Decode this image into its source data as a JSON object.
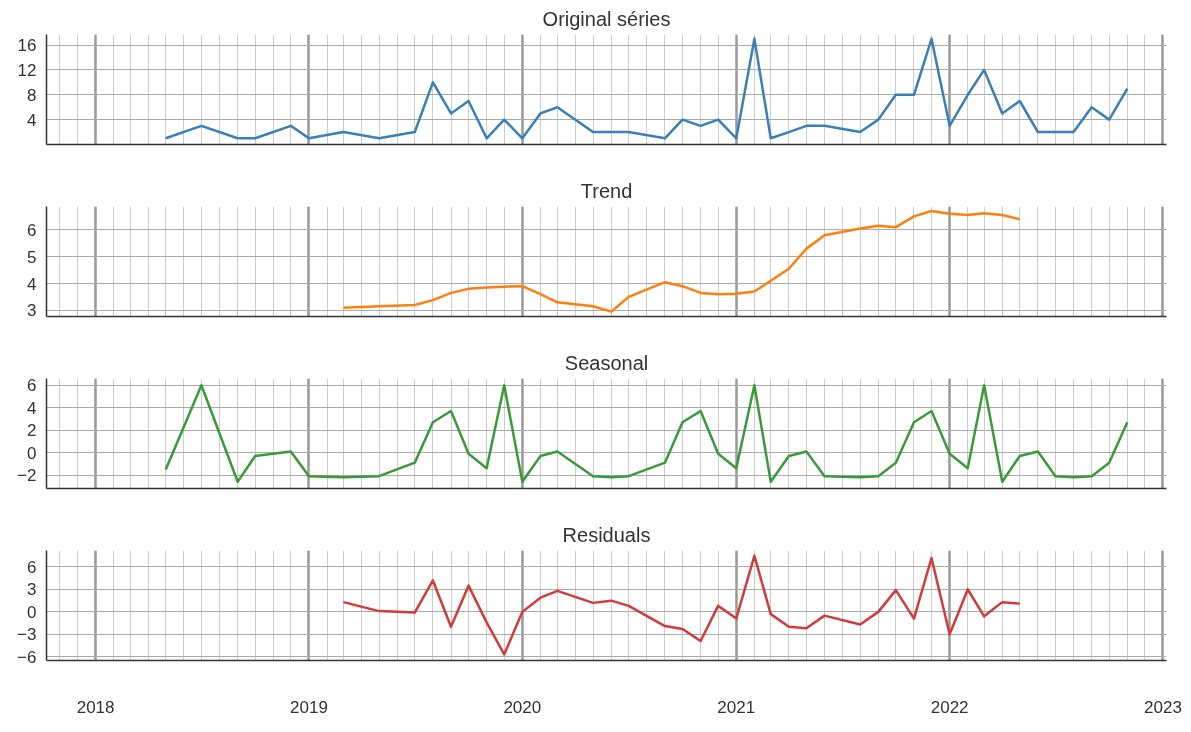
{
  "chart_data": [
    {
      "type": "line",
      "title": "Original séries",
      "tick_labels": "y",
      "grid": true,
      "xlim": [
        "2017-10-09",
        "2023-01-07"
      ],
      "xticks": [
        {
          "value": "2018",
          "label": null
        },
        {
          "value": "2019",
          "label": null
        },
        {
          "value": "2020",
          "label": null
        },
        {
          "value": "2021",
          "label": null
        },
        {
          "value": "2022",
          "label": null
        },
        {
          "value": "2023",
          "label": null
        }
      ],
      "ylim": [
        0,
        17.7
      ],
      "yticks": [
        4,
        8,
        12,
        16
      ],
      "x": [
        "2018-05",
        "2018-07",
        "2018-09",
        "2018-10",
        "2018-12",
        "2019-01",
        "2019-03",
        "2019-05",
        "2019-07",
        "2019-08",
        "2019-09",
        "2019-10",
        "2019-11",
        "2019-12",
        "2020-01",
        "2020-02",
        "2020-03",
        "2020-05",
        "2020-06",
        "2020-07",
        "2020-09",
        "2020-10",
        "2020-11",
        "2020-12",
        "2021-01",
        "2021-02",
        "2021-03",
        "2021-04",
        "2021-05",
        "2021-06",
        "2021-08",
        "2021-09",
        "2021-10",
        "2021-11",
        "2021-12",
        "2022-01",
        "2022-02",
        "2022-03",
        "2022-04",
        "2022-05",
        "2022-06",
        "2022-07",
        "2022-08",
        "2022-09",
        "2022-10",
        "2022-11"
      ],
      "series": [
        {
          "color": "#3a7fb5",
          "values": [
            1,
            3,
            1,
            1,
            3,
            1,
            2,
            1,
            2,
            10,
            5,
            7,
            1,
            4,
            1,
            5,
            6,
            2,
            2,
            2,
            1,
            4,
            3,
            4,
            1,
            17,
            1,
            2,
            3,
            3,
            2,
            4,
            8,
            8,
            17,
            3,
            8,
            12,
            5,
            7,
            2,
            2,
            2,
            6,
            4,
            9
          ]
        }
      ]
    },
    {
      "type": "line",
      "title": "Trend",
      "tick_labels": "y",
      "grid": true,
      "xlim": [
        "2017-10-09",
        "2023-01-07"
      ],
      "xticks": [
        {
          "value": "2018",
          "label": null
        },
        {
          "value": "2019",
          "label": null
        },
        {
          "value": "2020",
          "label": null
        },
        {
          "value": "2021",
          "label": null
        },
        {
          "value": "2022",
          "label": null
        },
        {
          "value": "2023",
          "label": null
        }
      ],
      "ylim": [
        2.77,
        6.87
      ],
      "yticks": [
        3,
        4,
        5,
        6
      ],
      "x": [
        "2019-03",
        "2019-05",
        "2019-07",
        "2019-08",
        "2019-09",
        "2019-10",
        "2019-11",
        "2019-12",
        "2020-01",
        "2020-02",
        "2020-03",
        "2020-05",
        "2020-06",
        "2020-07",
        "2020-09",
        "2020-10",
        "2020-11",
        "2020-12",
        "2021-01",
        "2021-02",
        "2021-03",
        "2021-04",
        "2021-05",
        "2021-06",
        "2021-08",
        "2021-09",
        "2021-10",
        "2021-11",
        "2021-12",
        "2022-01",
        "2022-02",
        "2022-03",
        "2022-04",
        "2022-05"
      ],
      "series": [
        {
          "color": "#ff7f0e",
          "values": [
            3.1,
            3.15,
            3.2,
            3.38,
            3.65,
            3.8,
            3.85,
            3.88,
            3.9,
            3.6,
            3.3,
            3.15,
            2.95,
            3.5,
            4.05,
            3.9,
            3.65,
            3.6,
            3.62,
            3.7,
            4.1,
            4.55,
            5.3,
            5.8,
            6.05,
            6.15,
            6.1,
            6.5,
            6.7,
            6.6,
            6.55,
            6.62,
            6.55,
            6.4
          ]
        }
      ]
    },
    {
      "type": "line",
      "title": "Seasonal",
      "tick_labels": "y",
      "grid": true,
      "xlim": [
        "2017-10-09",
        "2023-01-07"
      ],
      "xticks": [
        {
          "value": "2018",
          "label": null
        },
        {
          "value": "2019",
          "label": null
        },
        {
          "value": "2020",
          "label": null
        },
        {
          "value": "2021",
          "label": null
        },
        {
          "value": "2022",
          "label": null
        },
        {
          "value": "2023",
          "label": null
        }
      ],
      "ylim": [
        -3.2,
        6.6
      ],
      "yticks": [
        {
          "value": -2,
          "label": "−2"
        },
        0,
        2,
        4,
        6
      ],
      "x": [
        "2018-05",
        "2018-07",
        "2018-09",
        "2018-10",
        "2018-12",
        "2019-01",
        "2019-03",
        "2019-05",
        "2019-07",
        "2019-08",
        "2019-09",
        "2019-10",
        "2019-11",
        "2019-12",
        "2020-01",
        "2020-02",
        "2020-03",
        "2020-05",
        "2020-06",
        "2020-07",
        "2020-09",
        "2020-10",
        "2020-11",
        "2020-12",
        "2021-01",
        "2021-02",
        "2021-03",
        "2021-04",
        "2021-05",
        "2021-06",
        "2021-08",
        "2021-09",
        "2021-10",
        "2021-11",
        "2021-12",
        "2022-01",
        "2022-02",
        "2022-03",
        "2022-04",
        "2022-05",
        "2022-06",
        "2022-07",
        "2022-08",
        "2022-09",
        "2022-10",
        "2022-11"
      ],
      "series": [
        {
          "color": "#3a9a3a",
          "values": [
            -1.5,
            6,
            -2.6,
            -0.3,
            0.1,
            -2.1,
            -2.2,
            -2.1,
            -0.9,
            2.7,
            3.7,
            -0.1,
            -1.4,
            6,
            -2.6,
            -0.3,
            0.1,
            -2.1,
            -2.2,
            -2.1,
            -0.9,
            2.7,
            3.7,
            -0.1,
            -1.4,
            6,
            -2.6,
            -0.3,
            0.1,
            -2.1,
            -2.2,
            -2.1,
            -0.9,
            2.7,
            3.7,
            -0.1,
            -1.4,
            6,
            -2.6,
            -0.3,
            0.1,
            -2.1,
            -2.2,
            -2.1,
            -0.9,
            2.7
          ]
        }
      ]
    },
    {
      "type": "line",
      "title": "Residuals",
      "grid": true,
      "xlim": [
        "2017-10-09",
        "2023-01-07"
      ],
      "xticks": [
        {
          "value": "2018",
          "label": "2018"
        },
        {
          "value": "2019",
          "label": "2019"
        },
        {
          "value": "2020",
          "label": "2020"
        },
        {
          "value": "2021",
          "label": "2021"
        },
        {
          "value": "2022",
          "label": "2022"
        },
        {
          "value": "2023",
          "label": "2023"
        }
      ],
      "ylim": [
        -6.5,
        8.2
      ],
      "yticks": [
        {
          "value": -6,
          "label": "−6"
        },
        {
          "value": -3,
          "label": "−3"
        },
        0,
        3,
        6
      ],
      "x": [
        "2019-03",
        "2019-05",
        "2019-07",
        "2019-08",
        "2019-09",
        "2019-10",
        "2019-11",
        "2019-12",
        "2020-01",
        "2020-02",
        "2020-03",
        "2020-05",
        "2020-06",
        "2020-07",
        "2020-09",
        "2020-10",
        "2020-11",
        "2020-12",
        "2021-01",
        "2021-02",
        "2021-03",
        "2021-04",
        "2021-05",
        "2021-06",
        "2021-08",
        "2021-09",
        "2021-10",
        "2021-11",
        "2021-12",
        "2022-01",
        "2022-02",
        "2022-03",
        "2022-04",
        "2022-05"
      ],
      "series": [
        {
          "color": "#d03b3b",
          "values": [
            1.3,
            0.1,
            -0.1,
            4.2,
            -2,
            3.5,
            -1.4,
            -5.7,
            0,
            1.9,
            2.8,
            1.2,
            1.5,
            0.8,
            -1.9,
            -2.3,
            -3.9,
            0.8,
            -0.9,
            7.5,
            -0.3,
            -2,
            -2.2,
            -0.5,
            -1.7,
            0,
            2.9,
            -0.9,
            7.2,
            -3,
            3,
            -0.6,
            1.3,
            1.1
          ]
        }
      ]
    }
  ]
}
